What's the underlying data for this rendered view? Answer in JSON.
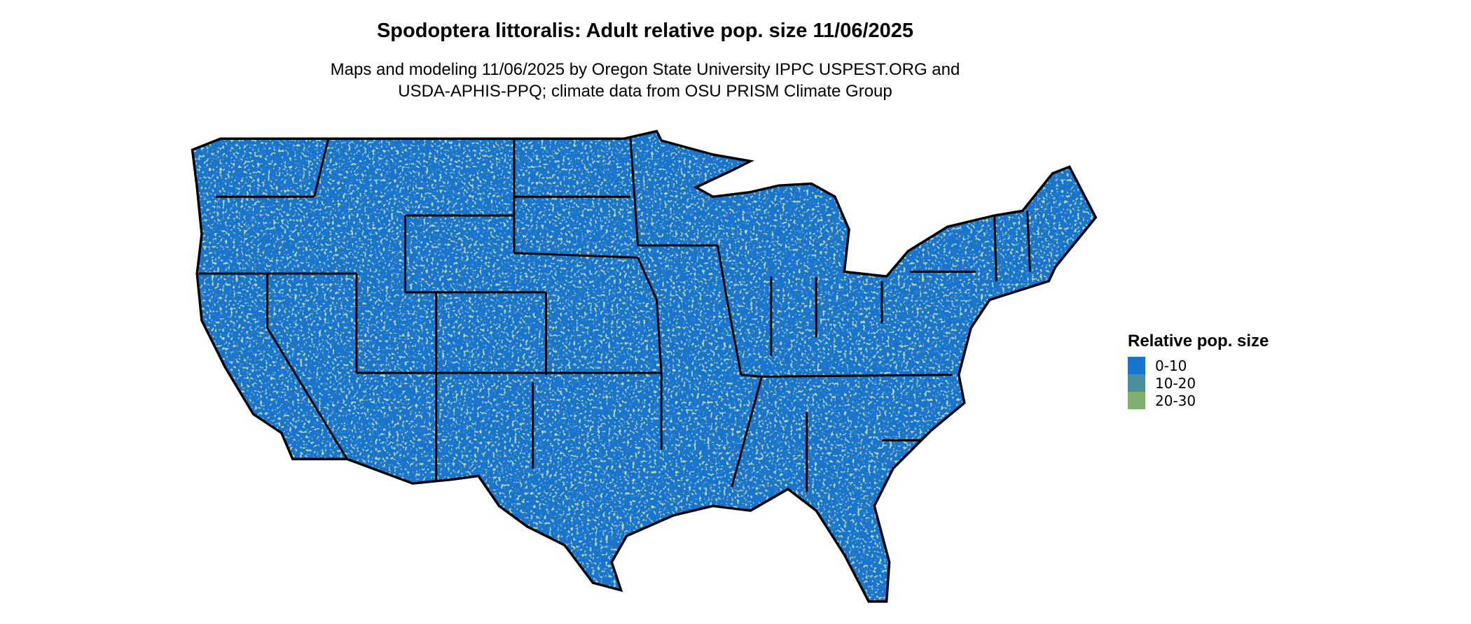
{
  "title": "Spodoptera littoralis: Adult relative pop. size 11/06/2025",
  "subtitle_line1": "Maps and modeling 11/06/2025 by Oregon State University IPPC USPEST.ORG and",
  "subtitle_line2": "USDA-APHIS-PPQ; climate data from OSU PRISM Climate Group",
  "map": {
    "region": "Contiguous United States",
    "dominant_class": "0-10",
    "border_color": "#000000"
  },
  "legend": {
    "title": "Relative pop. size",
    "items": [
      {
        "label": "0-10",
        "color": "#1874CD"
      },
      {
        "label": "10-20",
        "color": "#4A8F9C"
      },
      {
        "label": "20-30",
        "color": "#7FAF6E"
      }
    ]
  }
}
